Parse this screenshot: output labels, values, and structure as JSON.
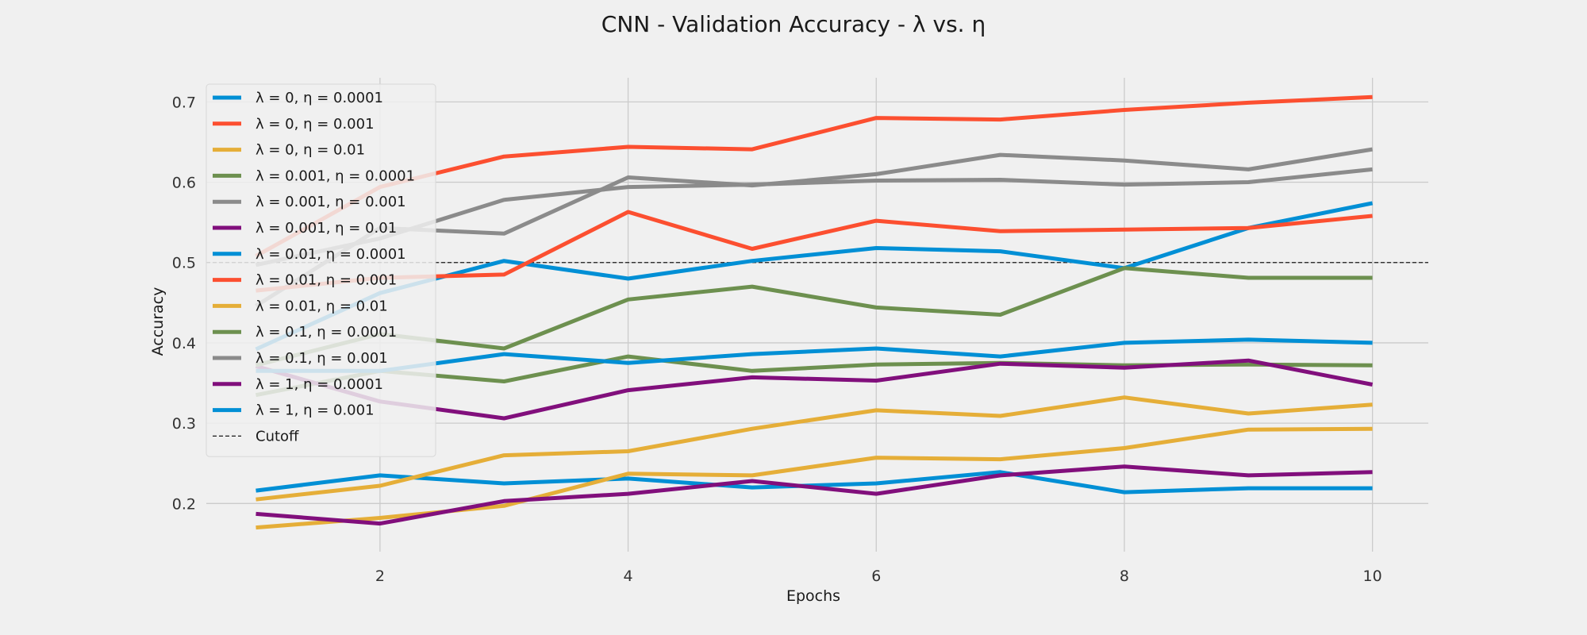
{
  "chart_data": {
    "type": "line",
    "title": "CNN      -      Validation Accuracy   -   λ  vs. η",
    "xlabel": "Epochs",
    "ylabel": "Accuracy",
    "xlim": [
      0.6,
      10.45
    ],
    "ylim": [
      0.14,
      0.73
    ],
    "xticks": [
      2,
      4,
      6,
      8,
      10
    ],
    "yticks": [
      0.2,
      0.3,
      0.4,
      0.5,
      0.6,
      0.7
    ],
    "x": [
      1,
      2,
      3,
      4,
      5,
      6,
      7,
      8,
      9,
      10
    ],
    "grid": true,
    "legend_position": "top-left",
    "series": [
      {
        "name": "λ =   0, η = 0.0001",
        "color": "#008fd5",
        "values": [
          0.216,
          0.235,
          0.225,
          0.231,
          0.22,
          0.225,
          0.239,
          0.214,
          0.219,
          0.219
        ]
      },
      {
        "name": "λ =   0, η = 0.001",
        "color": "#fc4f30",
        "values": [
          0.508,
          0.594,
          0.632,
          0.644,
          0.641,
          0.68,
          0.678,
          0.69,
          0.699,
          0.706
        ]
      },
      {
        "name": "λ =   0, η = 0.01",
        "color": "#e5ae38",
        "values": [
          0.205,
          0.222,
          0.26,
          0.265,
          0.293,
          0.316,
          0.309,
          0.332,
          0.312,
          0.323
        ]
      },
      {
        "name": "λ = 0.001, η = 0.0001",
        "color": "#6d904f",
        "values": [
          0.335,
          0.365,
          0.352,
          0.383,
          0.365,
          0.373,
          0.375,
          0.372,
          0.373,
          0.372
        ]
      },
      {
        "name": "λ = 0.001, η = 0.001",
        "color": "#8b8b8b",
        "values": [
          0.446,
          0.543,
          0.536,
          0.606,
          0.596,
          0.61,
          0.634,
          0.627,
          0.616,
          0.641
        ]
      },
      {
        "name": "λ = 0.001, η = 0.01",
        "color": "#810f7c",
        "values": [
          0.371,
          0.327,
          0.306,
          0.341,
          0.357,
          0.353,
          0.374,
          0.369,
          0.378,
          0.348
        ]
      },
      {
        "name": "λ = 0.01, η = 0.0001",
        "color": "#008fd5",
        "values": [
          0.392,
          0.462,
          0.502,
          0.48,
          0.502,
          0.518,
          0.514,
          0.493,
          0.543,
          0.574
        ]
      },
      {
        "name": "λ = 0.01, η = 0.001",
        "color": "#fc4f30",
        "values": [
          0.465,
          0.481,
          0.485,
          0.563,
          0.517,
          0.552,
          0.539,
          0.541,
          0.543,
          0.558
        ]
      },
      {
        "name": "λ = 0.01, η = 0.01",
        "color": "#e5ae38",
        "values": [
          0.17,
          0.182,
          0.197,
          0.237,
          0.235,
          0.257,
          0.255,
          0.269,
          0.292,
          0.293
        ]
      },
      {
        "name": "λ = 0.1, η = 0.0001",
        "color": "#6d904f",
        "values": [
          0.372,
          0.411,
          0.393,
          0.454,
          0.47,
          0.444,
          0.435,
          0.493,
          0.481,
          0.481
        ]
      },
      {
        "name": "λ = 0.1, η = 0.001",
        "color": "#8b8b8b",
        "values": [
          0.497,
          0.53,
          0.578,
          0.594,
          0.597,
          0.602,
          0.603,
          0.597,
          0.6,
          0.616
        ]
      },
      {
        "name": "λ =   1, η = 0.0001",
        "color": "#810f7c",
        "values": [
          0.187,
          0.175,
          0.203,
          0.212,
          0.228,
          0.212,
          0.235,
          0.246,
          0.235,
          0.239
        ]
      },
      {
        "name": "λ =   1, η = 0.001",
        "color": "#008fd5",
        "values": [
          0.365,
          0.365,
          0.386,
          0.375,
          0.386,
          0.393,
          0.383,
          0.4,
          0.404,
          0.4
        ]
      }
    ],
    "reference_line": {
      "name": "Cutoff",
      "y": 0.5,
      "color": "#1a1a1a",
      "style": "dashed"
    }
  }
}
